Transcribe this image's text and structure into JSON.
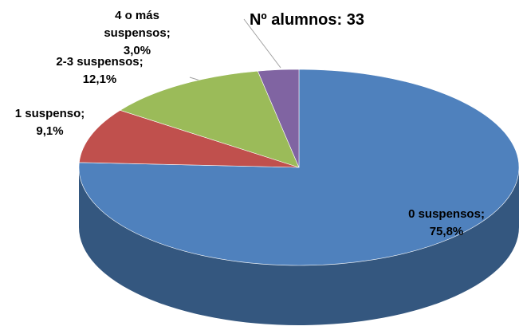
{
  "chart_data": {
    "type": "pie3d",
    "title": "Nº alumnos: 33",
    "categories": [
      "0 suspensos",
      "1 suspenso",
      "2-3 suspensos",
      "4 o más suspensos"
    ],
    "values": [
      75.8,
      9.1,
      12.1,
      3.0
    ],
    "value_labels": [
      "75,8%",
      "9,1%",
      "12,1%",
      "3,0%"
    ],
    "label_separator": ";",
    "colors": [
      "#4f81bd",
      "#c0504d",
      "#9bbb59",
      "#8064a2"
    ],
    "side_colors": [
      "#34577f",
      "#8a3432",
      "#6d8a3a",
      "#5a4576"
    ]
  }
}
